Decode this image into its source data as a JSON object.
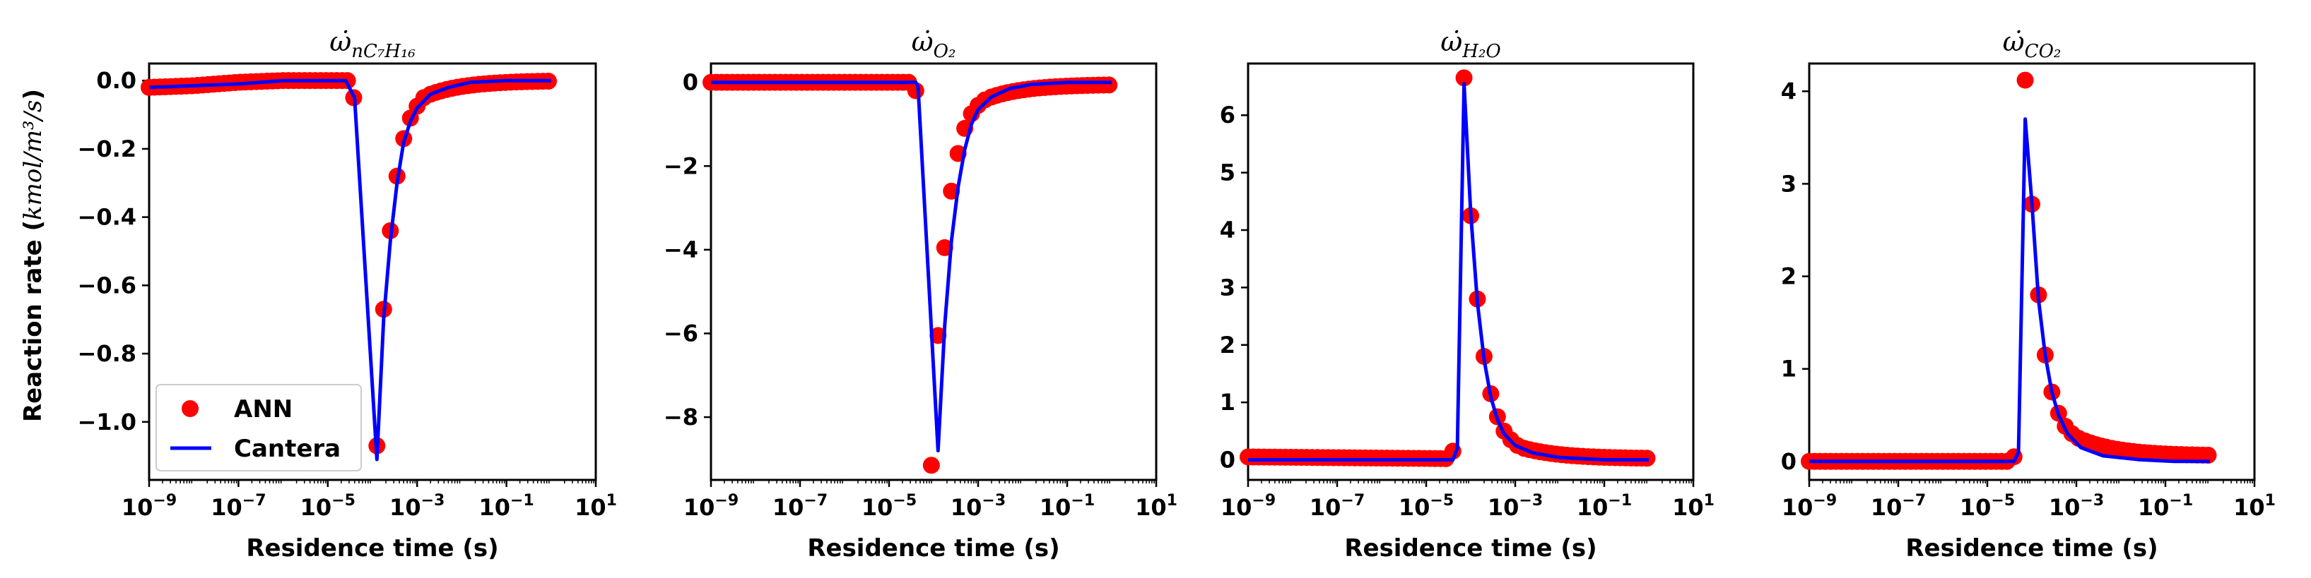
{
  "figure": {
    "ylabel": "Reaction rate",
    "ylabel_unit": "kmol/m³/s",
    "xlabel": "Residence time (s)",
    "legend": {
      "ann": "ANN",
      "cantera": "Cantera"
    },
    "colors": {
      "ann": "#ff0000",
      "cantera": "#0000ff"
    }
  },
  "chart_data": [
    {
      "type": "scatter+line",
      "title_symbol": "ω̇",
      "title_subscript": "nC₇H₁₆",
      "xscale": "log",
      "xlim": [
        1e-09,
        10
      ],
      "xticks": [
        -9,
        -7,
        -5,
        -3,
        -1,
        1
      ],
      "ylim": [
        -1.17,
        0.05
      ],
      "yticks": [
        0.0,
        -0.2,
        -0.4,
        -0.6,
        -0.8,
        -1.0
      ],
      "yticklabels": [
        "0.0",
        "−0.2",
        "−0.4",
        "−0.6",
        "−0.8",
        "−1.0"
      ],
      "legend_loc": "lower-left",
      "baseline": {
        "from_exp": -9,
        "to_exp": -4.4,
        "values": [
          [
            -9,
            -0.02
          ],
          [
            -8,
            -0.015
          ],
          [
            -7,
            -0.005
          ],
          [
            -6,
            0.0
          ],
          [
            -5,
            0.0
          ],
          [
            -4.5,
            0.0
          ]
        ]
      },
      "ann_markers": [
        [
          -4.42,
          -0.05
        ],
        [
          -3.9,
          -1.07
        ],
        [
          -3.75,
          -0.67
        ],
        [
          -3.6,
          -0.44
        ],
        [
          -3.45,
          -0.28
        ],
        [
          -3.3,
          -0.17
        ],
        [
          -3.15,
          -0.11
        ],
        [
          -3.0,
          -0.075
        ],
        [
          -2.85,
          -0.05
        ]
      ],
      "ann_tail": {
        "from_exp": -2.7,
        "to_exp": 0,
        "start": -0.04,
        "end": 0.0
      },
      "cantera": [
        [
          -9,
          -0.02
        ],
        [
          -7,
          -0.01
        ],
        [
          -6,
          0.0
        ],
        [
          -4.6,
          0.0
        ],
        [
          -4.4,
          -0.05
        ],
        [
          -3.9,
          -1.11
        ],
        [
          -3.75,
          -0.7
        ],
        [
          -3.6,
          -0.47
        ],
        [
          -3.45,
          -0.3
        ],
        [
          -3.3,
          -0.18
        ],
        [
          -3.15,
          -0.12
        ],
        [
          -3.0,
          -0.08
        ],
        [
          -2.7,
          -0.04
        ],
        [
          -2.3,
          -0.02
        ],
        [
          -1.8,
          -0.005
        ],
        [
          -1,
          0.0
        ],
        [
          0,
          0.0
        ]
      ]
    },
    {
      "type": "scatter+line",
      "title_symbol": "ω̇",
      "title_subscript": "O₂",
      "xscale": "log",
      "xlim": [
        1e-09,
        10
      ],
      "xticks": [
        -9,
        -7,
        -5,
        -3,
        -1,
        1
      ],
      "ylim": [
        -9.5,
        0.45
      ],
      "yticks": [
        0,
        -2,
        -4,
        -6,
        -8
      ],
      "yticklabels": [
        "0",
        "−2",
        "−4",
        "−6",
        "−8"
      ],
      "baseline": {
        "from_exp": -9,
        "to_exp": -4.4,
        "values": [
          [
            -9,
            0.0
          ],
          [
            -4.5,
            0.0
          ]
        ]
      },
      "ann_markers": [
        [
          -4.4,
          -0.2
        ],
        [
          -4.05,
          -9.15
        ],
        [
          -3.9,
          -6.05
        ],
        [
          -3.75,
          -3.95
        ],
        [
          -3.6,
          -2.6
        ],
        [
          -3.45,
          -1.7
        ],
        [
          -3.3,
          -1.1
        ],
        [
          -3.15,
          -0.75
        ],
        [
          -3.0,
          -0.55
        ],
        [
          -2.85,
          -0.42
        ]
      ],
      "ann_tail": {
        "from_exp": -2.7,
        "to_exp": 0,
        "start": -0.35,
        "end": -0.05
      },
      "cantera": [
        [
          -9,
          0.0
        ],
        [
          -4.4,
          0.0
        ],
        [
          -4.35,
          -0.1
        ],
        [
          -3.9,
          -8.8
        ],
        [
          -3.75,
          -5.8
        ],
        [
          -3.6,
          -3.8
        ],
        [
          -3.45,
          -2.5
        ],
        [
          -3.3,
          -1.6
        ],
        [
          -3.15,
          -1.0
        ],
        [
          -3.0,
          -0.65
        ],
        [
          -2.7,
          -0.35
        ],
        [
          -2.3,
          -0.15
        ],
        [
          -1.8,
          -0.05
        ],
        [
          -1,
          0.0
        ],
        [
          0,
          0.0
        ]
      ]
    },
    {
      "type": "scatter+line",
      "title_symbol": "ω̇",
      "title_subscript": "H₂O",
      "xscale": "log",
      "xlim": [
        1e-09,
        10
      ],
      "xticks": [
        -9,
        -7,
        -5,
        -3,
        -1,
        1
      ],
      "ylim": [
        -0.35,
        6.9
      ],
      "yticks": [
        0,
        1,
        2,
        3,
        4,
        5,
        6
      ],
      "yticklabels": [
        "0",
        "1",
        "2",
        "3",
        "4",
        "5",
        "6"
      ],
      "baseline": {
        "from_exp": -9,
        "to_exp": -4.4,
        "values": [
          [
            -9,
            0.05
          ],
          [
            -6,
            0.03
          ],
          [
            -4.5,
            0.02
          ]
        ]
      },
      "ann_markers": [
        [
          -4.4,
          0.15
        ],
        [
          -4.15,
          6.65
        ],
        [
          -4.0,
          4.25
        ],
        [
          -3.85,
          2.8
        ],
        [
          -3.7,
          1.8
        ],
        [
          -3.55,
          1.15
        ],
        [
          -3.4,
          0.75
        ],
        [
          -3.25,
          0.5
        ],
        [
          -3.1,
          0.35
        ],
        [
          -2.95,
          0.25
        ]
      ],
      "ann_tail": {
        "from_exp": -2.8,
        "to_exp": 0,
        "start": 0.2,
        "end": 0.02
      },
      "cantera": [
        [
          -9,
          0.0
        ],
        [
          -4.4,
          0.0
        ],
        [
          -4.3,
          0.2
        ],
        [
          -4.15,
          6.55
        ],
        [
          -4.0,
          4.3
        ],
        [
          -3.85,
          2.75
        ],
        [
          -3.7,
          1.75
        ],
        [
          -3.55,
          1.1
        ],
        [
          -3.4,
          0.7
        ],
        [
          -3.25,
          0.45
        ],
        [
          -3.0,
          0.25
        ],
        [
          -2.6,
          0.12
        ],
        [
          -2.0,
          0.04
        ],
        [
          -1,
          0.0
        ],
        [
          0,
          0.0
        ]
      ]
    },
    {
      "type": "scatter+line",
      "title_symbol": "ω̇",
      "title_subscript": "CO₂",
      "xscale": "log",
      "xlim": [
        1e-09,
        10
      ],
      "xticks": [
        -9,
        -7,
        -5,
        -3,
        -1,
        1
      ],
      "ylim": [
        -0.2,
        4.3
      ],
      "yticks": [
        0,
        1,
        2,
        3,
        4
      ],
      "yticklabels": [
        "0",
        "1",
        "2",
        "3",
        "4"
      ],
      "baseline": {
        "from_exp": -9,
        "to_exp": -4.4,
        "values": [
          [
            -9,
            0.0
          ],
          [
            -4.5,
            0.0
          ]
        ]
      },
      "ann_markers": [
        [
          -4.4,
          0.05
        ],
        [
          -4.15,
          4.12
        ],
        [
          -4.0,
          2.78
        ],
        [
          -3.85,
          1.8
        ],
        [
          -3.7,
          1.15
        ],
        [
          -3.55,
          0.75
        ],
        [
          -3.4,
          0.52
        ],
        [
          -3.25,
          0.38
        ],
        [
          -3.1,
          0.3
        ],
        [
          -2.95,
          0.25
        ]
      ],
      "ann_tail": {
        "from_exp": -2.8,
        "to_exp": 0,
        "start": 0.22,
        "end": 0.06
      },
      "cantera": [
        [
          -9,
          0.0
        ],
        [
          -4.4,
          0.0
        ],
        [
          -4.3,
          0.1
        ],
        [
          -4.15,
          3.7
        ],
        [
          -4.0,
          2.8
        ],
        [
          -3.85,
          1.75
        ],
        [
          -3.7,
          1.15
        ],
        [
          -3.55,
          0.75
        ],
        [
          -3.4,
          0.5
        ],
        [
          -3.2,
          0.3
        ],
        [
          -2.9,
          0.15
        ],
        [
          -2.4,
          0.06
        ],
        [
          -1.6,
          0.02
        ],
        [
          -0.8,
          0.0
        ],
        [
          0,
          0.0
        ]
      ]
    }
  ]
}
